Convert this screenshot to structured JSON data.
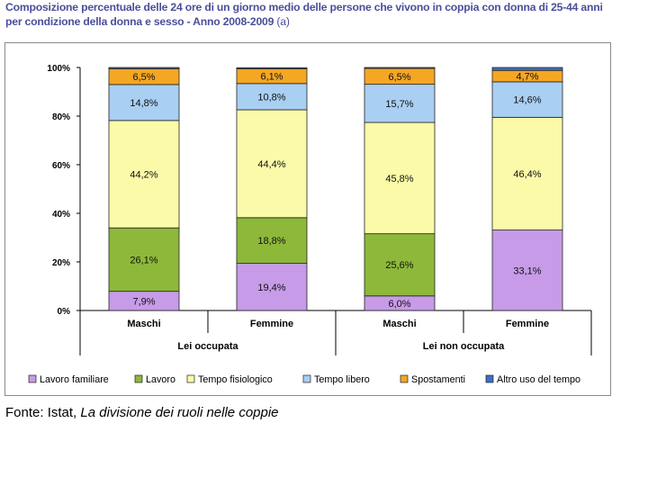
{
  "title": {
    "line1": "Composizione percentuale delle 24 ore di un giorno medio delle persone che vivono in coppia con donna di 25-44 anni",
    "line2": "per condizione della donna e sesso - Anno 2008-2009",
    "note": "(a)"
  },
  "caption": {
    "prefix": "Fonte: Istat, ",
    "work": "La divisione dei ruoli nelle coppie"
  },
  "chart_data": {
    "type": "bar",
    "stacked": true,
    "ylim": [
      0,
      100
    ],
    "yticks": [
      "0%",
      "20%",
      "40%",
      "60%",
      "80%",
      "100%"
    ],
    "categories": [
      "Maschi",
      "Femmine",
      "Maschi",
      "Femmine"
    ],
    "groups": [
      {
        "label": "Lei occupata",
        "categories": [
          "Maschi",
          "Femmine"
        ]
      },
      {
        "label": "Lei non occupata",
        "categories": [
          "Maschi",
          "Femmine"
        ]
      }
    ],
    "series": [
      {
        "name": "Lavoro familiare",
        "color": "#c79be8",
        "values": [
          7.9,
          19.4,
          6.0,
          33.1
        ],
        "labels": [
          "7,9%",
          "19,4%",
          "6,0%",
          "33,1%"
        ]
      },
      {
        "name": "Lavoro",
        "color": "#8db83a",
        "values": [
          26.1,
          18.8,
          25.6,
          0
        ],
        "labels": [
          "26,1%",
          "18,8%",
          "25,6%",
          ""
        ]
      },
      {
        "name": "Tempo fisiologico",
        "color": "#fafaa8",
        "values": [
          44.2,
          44.4,
          45.8,
          46.4
        ],
        "labels": [
          "44,2%",
          "44,4%",
          "45,8%",
          "46,4%"
        ]
      },
      {
        "name": "Tempo libero",
        "color": "#a9cff2",
        "values": [
          14.8,
          10.8,
          15.7,
          14.6
        ],
        "labels": [
          "14,8%",
          "10,8%",
          "15,7%",
          "14,6%"
        ]
      },
      {
        "name": "Spostamenti",
        "color": "#f5a623",
        "values": [
          6.5,
          6.1,
          6.5,
          4.7
        ],
        "labels": [
          "6,5%",
          "6,1%",
          "6,5%",
          "4,7%"
        ]
      },
      {
        "name": "Altro uso del tempo",
        "color": "#3f6fc2",
        "values": [
          0.5,
          0.4,
          0.4,
          1.2
        ],
        "labels": [
          "",
          "",
          "",
          ""
        ]
      }
    ],
    "legend_position": "bottom",
    "grid": false
  }
}
